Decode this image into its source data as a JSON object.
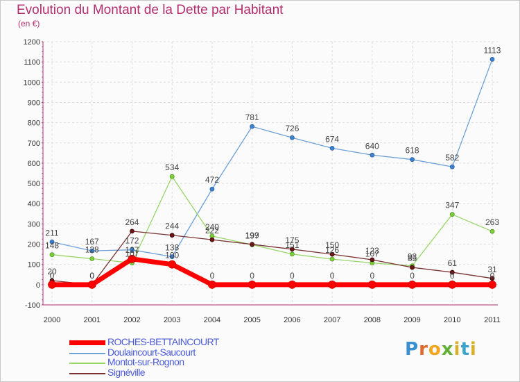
{
  "header": {
    "title": "Evolution du Montant de la Dette par Habitant",
    "subtitle": "(en €)"
  },
  "logo": {
    "text": "Proxiti"
  },
  "chart_data": {
    "type": "line",
    "title": "Evolution du Montant de la Dette par Habitant",
    "subtitle": "(en €)",
    "x": [
      "2000",
      "2001",
      "2002",
      "2003",
      "2004",
      "2005",
      "2006",
      "2007",
      "2008",
      "2009",
      "2010",
      "2011"
    ],
    "ylim": [
      -100,
      1200
    ],
    "yticks": [
      -100,
      0,
      100,
      200,
      300,
      400,
      500,
      600,
      700,
      800,
      900,
      1000,
      1100,
      1200
    ],
    "grid": true,
    "legend_position": "bottom-left",
    "series": [
      {
        "name": "ROCHES-BETTAINCOURT",
        "color": "#ff0000",
        "values": [
          0,
          0,
          127,
          100,
          0,
          0,
          0,
          0,
          0,
          0,
          0,
          0
        ],
        "labels": [
          "0",
          "0",
          "127",
          "100",
          "0",
          "0",
          "0",
          "0",
          "0",
          "0",
          "0",
          "0"
        ]
      },
      {
        "name": "Doulaincourt-Saucourt",
        "color": "#6ea0d8",
        "values": [
          211,
          167,
          172,
          138,
          472,
          781,
          726,
          674,
          640,
          618,
          582,
          1113
        ],
        "labels": [
          "211",
          "167",
          "172",
          "138",
          "472",
          "781",
          "726",
          "674",
          "640",
          "618",
          "582",
          "1113"
        ]
      },
      {
        "name": "Montot-sur-Rognon",
        "color": "#99d66a",
        "values": [
          148,
          128,
          107,
          534,
          240,
          197,
          151,
          126,
          107,
          93,
          347,
          263
        ],
        "labels": [
          "148",
          "128",
          "107",
          "534",
          "240",
          "197",
          "151",
          "126",
          "107",
          "93",
          "347",
          "263"
        ]
      },
      {
        "name": "Signéville",
        "color": "#7a3333",
        "values": [
          20,
          0,
          264,
          244,
          222,
          199,
          175,
          150,
          123,
          85,
          61,
          31
        ],
        "labels": [
          "20",
          "0",
          "264",
          "244",
          "222",
          "199",
          "175",
          "150",
          "123",
          "85",
          "61",
          "31"
        ]
      }
    ]
  }
}
